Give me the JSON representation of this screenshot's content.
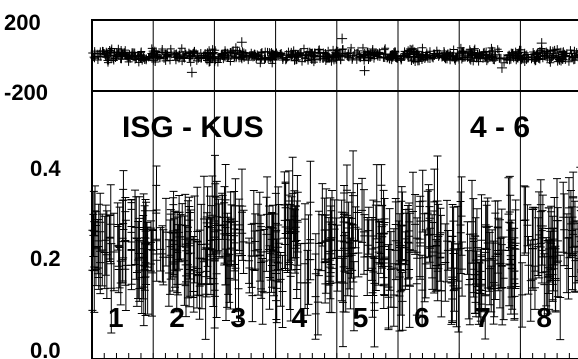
{
  "chart_data": [
    {
      "type": "scatter",
      "panel": "top",
      "marker": "plus",
      "ylim": [
        -200,
        200
      ],
      "yticks": [
        200,
        -200
      ],
      "ytick_labels": [
        "200",
        "-200"
      ],
      "grid": "vertical lines at segment boundaries",
      "mean": 0,
      "spread": 25,
      "points_per_segment": 110,
      "outliers": [
        {
          "segment": 2,
          "y": -95
        },
        {
          "segment": 3,
          "y": 75
        },
        {
          "segment": 5,
          "y": 95
        },
        {
          "segment": 5,
          "y": -85
        },
        {
          "segment": 7,
          "y": -70
        },
        {
          "segment": 8,
          "y": 70
        }
      ]
    },
    {
      "type": "scatter",
      "panel": "bottom",
      "marker": "plus",
      "error_bars": true,
      "ylim": [
        0.0,
        0.5
      ],
      "yticks": [
        0.4,
        0.2,
        0.0
      ],
      "ytick_labels": [
        "0.4",
        "0.2",
        "0.0"
      ],
      "grid": "vertical lines at segment boundaries",
      "mean": 0.22,
      "spread": 0.07,
      "error_half_width": 0.07,
      "points_per_segment": 60,
      "title_left": "ISG - KUS",
      "title_right": "4 - 6",
      "segments": [
        "1",
        "2",
        "3",
        "4",
        "5",
        "6",
        "7",
        "8"
      ]
    }
  ],
  "colors": {
    "axis": "#000000",
    "marker": "#000000",
    "background": "#ffffff"
  }
}
